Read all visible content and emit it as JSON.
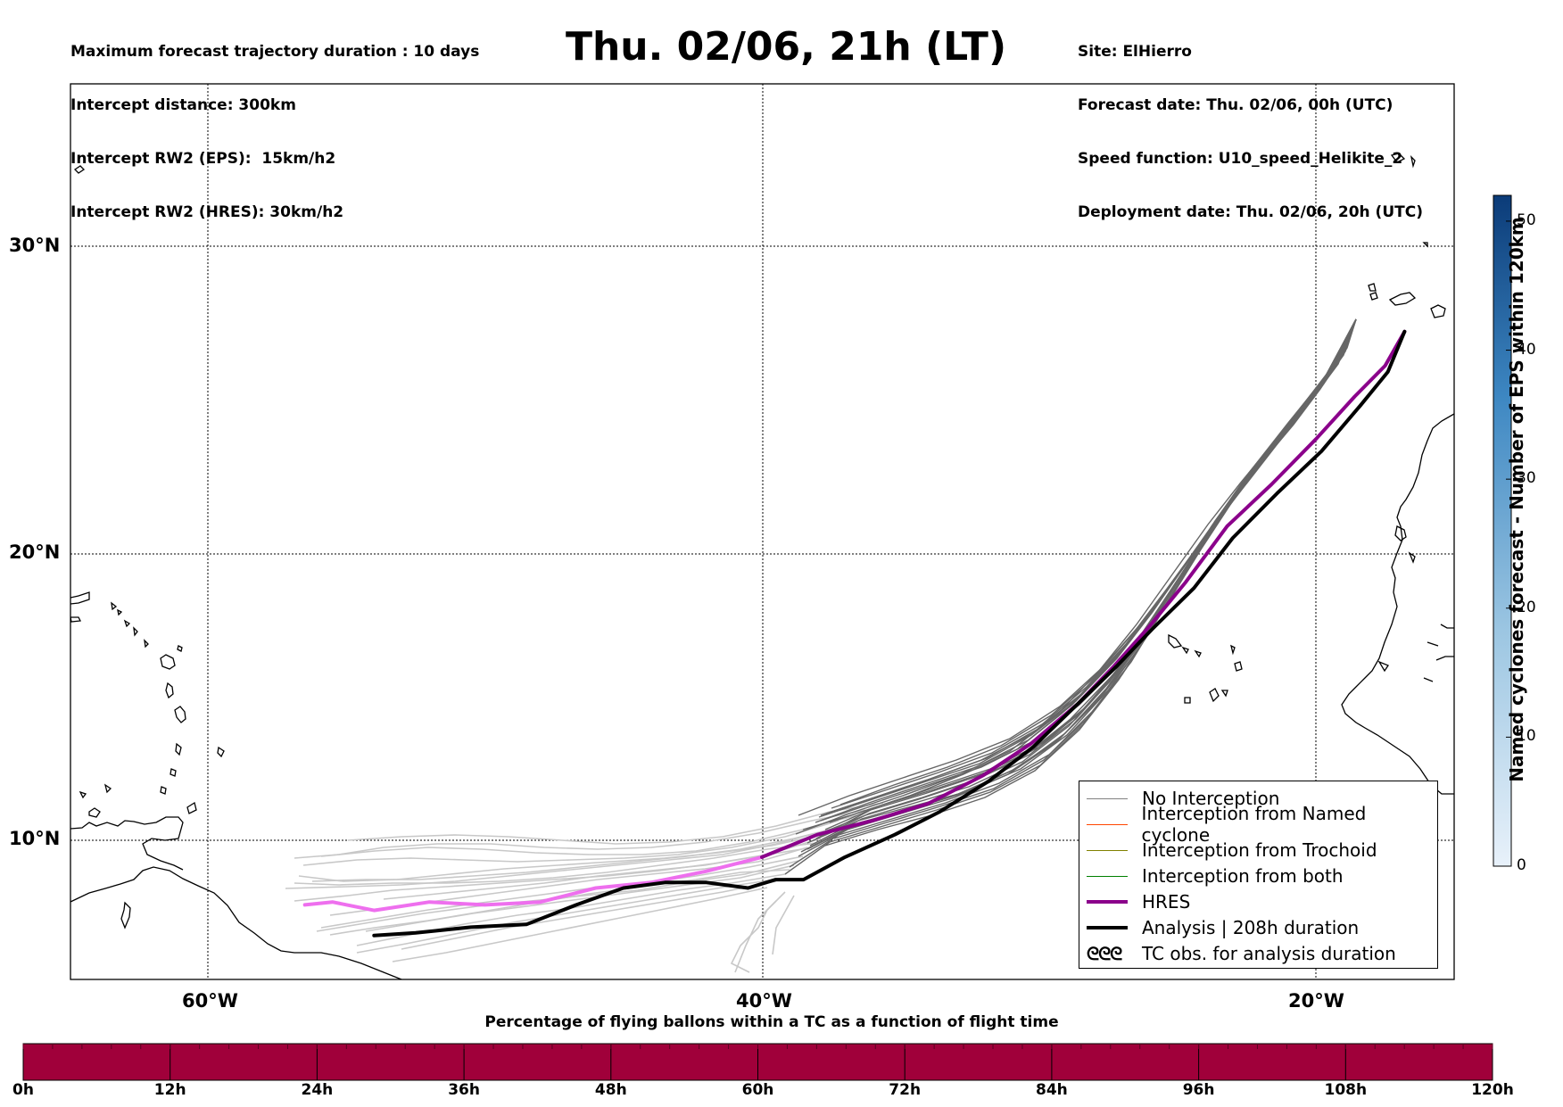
{
  "header": {
    "left_lines": [
      "Maximum forecast trajectory duration : 10 days",
      "Intercept distance: 300km",
      "Intercept RW2 (EPS):  15km/h2",
      "Intercept RW2 (HRES): 30km/h2"
    ],
    "title": "Thu. 02/06, 21h (LT)",
    "right_lines": [
      "Site: ElHierro",
      "Forecast date: Thu. 02/06, 00h (UTC)",
      "Speed function: U10_speed_Helikite_2",
      "Deployment date: Thu. 02/06, 20h (UTC)"
    ]
  },
  "map": {
    "lat_labels": [
      "30°N",
      "20°N",
      "10°N"
    ],
    "lon_labels": [
      "60°W",
      "40°W",
      "20°W"
    ],
    "extent": {
      "lon_min": -65,
      "lon_max": -15,
      "lat_min": 5.4,
      "lat_max": 35.3
    },
    "colors": {
      "hres": "#8b008b",
      "hres_light": "#ee6fee",
      "analysis": "#000000",
      "eps": "#666666",
      "eps_light": "#c8c8c8"
    }
  },
  "legend": [
    {
      "label": "No Interception",
      "color": "#808080",
      "width": 1
    },
    {
      "label": "Interception from Named cyclone",
      "color": "#ff4500",
      "width": 1
    },
    {
      "label": "Interception from Trochoid",
      "color": "#808000",
      "width": 1
    },
    {
      "label": "Interception from both",
      "color": "#008000",
      "width": 1
    },
    {
      "label": "HRES",
      "color": "#8b008b",
      "width": 4
    },
    {
      "label": "Analysis | 208h duration",
      "color": "#000000",
      "width": 4
    },
    {
      "label": "TC obs. for analysis duration",
      "symbol": "ᘓᘓᘓ",
      "color": "#000000"
    }
  ],
  "colorbar": {
    "title": "Named cyclones forecast - Number of EPS within 120km",
    "ticks": [
      "0",
      "10",
      "20",
      "30",
      "40",
      "50"
    ],
    "max": 52
  },
  "pct_bar": {
    "title": "Percentage of flying ballons within a TC as a function of flight time",
    "ticks": [
      "0h",
      "12h",
      "24h",
      "36h",
      "48h",
      "60h",
      "72h",
      "84h",
      "96h",
      "108h",
      "120h"
    ],
    "color": "#a0003a"
  },
  "chart_data": {
    "type": "line",
    "title": "Thu. 02/06, 21h (LT)",
    "xlabel": "",
    "ylabel": "",
    "series": [
      {
        "name": "HRES",
        "x": [
          -16.8,
          -17.5,
          -18.6,
          -20.0,
          -21.6,
          -23.2,
          -24.7,
          -26.0,
          -27.3,
          -28.6,
          -30.3,
          -32.0,
          -34.0,
          -36.0,
          -38.0,
          -40.0,
          -42.0,
          -44.0,
          -46.0,
          -48.0,
          -50.0,
          -52.0,
          -54.0,
          -55.5,
          -56.5
        ],
        "y": [
          27.3,
          26.2,
          25.2,
          23.8,
          22.3,
          20.9,
          19.0,
          17.5,
          16.1,
          14.8,
          13.4,
          12.3,
          11.3,
          10.7,
          10.2,
          9.4,
          8.9,
          8.5,
          8.3,
          7.8,
          7.7,
          7.8,
          7.5,
          7.8,
          7.7
        ]
      },
      {
        "name": "Analysis | 208h duration",
        "x": [
          -16.8,
          -17.4,
          -18.4,
          -19.8,
          -21.4,
          -23.0,
          -24.4,
          -25.9,
          -27.2,
          -28.6,
          -30.2,
          -31.8,
          -33.6,
          -35.2,
          -37.0,
          -38.5,
          -39.5,
          -40.5,
          -42.0,
          -43.5,
          -45.0,
          -46.7,
          -48.5,
          -50.5,
          -52.5,
          -54.0
        ],
        "y": [
          27.3,
          26.0,
          24.9,
          23.4,
          22.0,
          20.5,
          18.8,
          17.4,
          16.1,
          14.8,
          13.3,
          12.1,
          11.0,
          10.2,
          9.4,
          8.6,
          8.6,
          8.3,
          8.5,
          8.5,
          8.3,
          7.7,
          7.0,
          6.9,
          6.7,
          6.6
        ]
      }
    ],
    "ylim": [
      5.4,
      35.3
    ],
    "xlim": [
      -65,
      -15
    ]
  }
}
